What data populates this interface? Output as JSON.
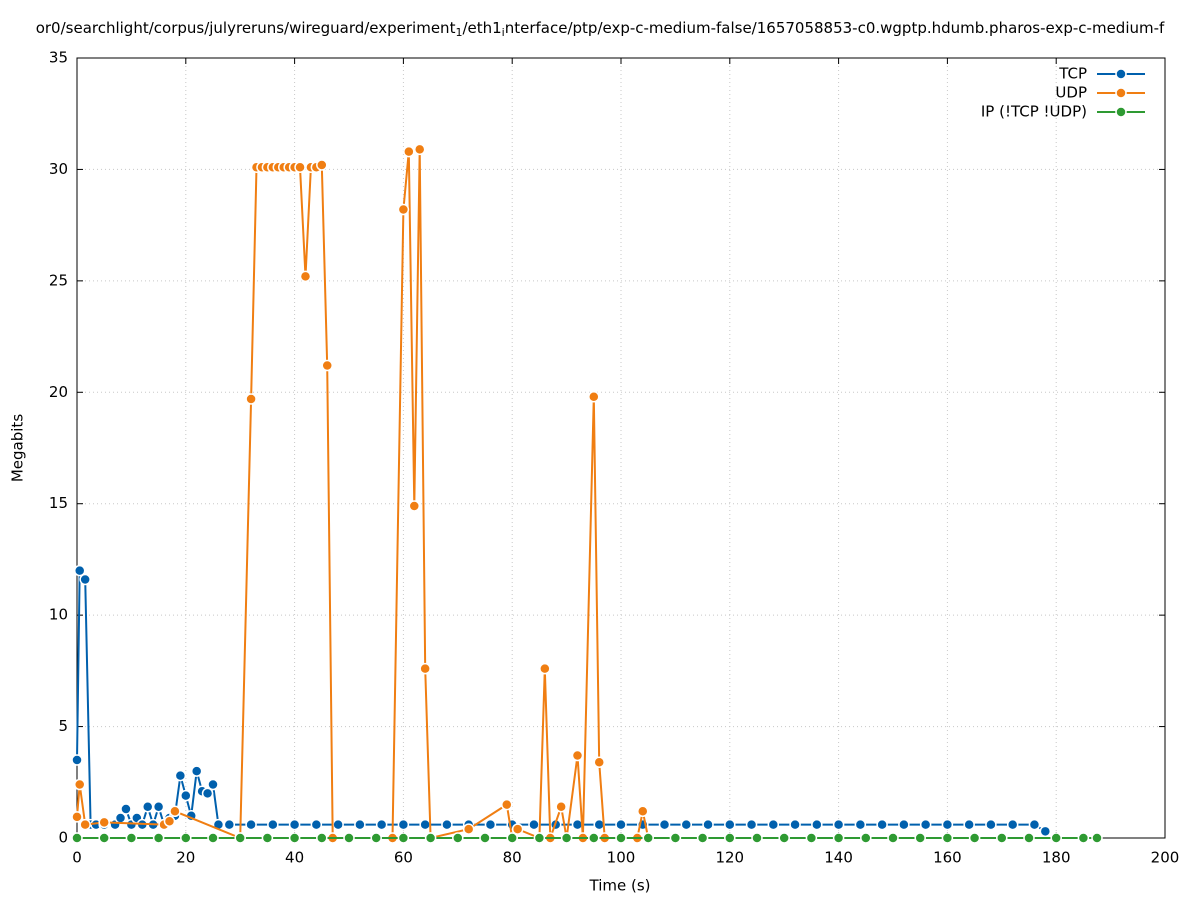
{
  "chart_data": {
    "type": "line",
    "title_segments": [
      "or0/searchlight/corpus/julyreruns/wireguard/experiment",
      "1",
      "/eth1",
      "i",
      "nterface/ptp/exp-c-medium-false/1657058853-c0.wgptp.hdumb.pharos-exp-c-medium-f"
    ],
    "xlabel": "Time (s)",
    "ylabel": "Megabits",
    "xlim": [
      0,
      200
    ],
    "xticks": [
      0,
      20,
      40,
      60,
      80,
      100,
      120,
      140,
      160,
      180,
      200
    ],
    "ylim": [
      0,
      35
    ],
    "yticks": [
      0,
      5,
      10,
      15,
      20,
      25,
      30,
      35
    ],
    "grid": true,
    "legend": "top-right",
    "series": [
      {
        "name": "TCP",
        "color": "#0060ad",
        "x": [
          0,
          0.5,
          1.5,
          2.5,
          3.5,
          5,
          7,
          8,
          9,
          10,
          11,
          12,
          13,
          14,
          15,
          16,
          17,
          18,
          19,
          20,
          21,
          22,
          23,
          24,
          25,
          26,
          28,
          32,
          36,
          40,
          44,
          48,
          52,
          56,
          60,
          64,
          68,
          72,
          76,
          80,
          84,
          88,
          92,
          96,
          100,
          104,
          108,
          112,
          116,
          120,
          124,
          128,
          132,
          136,
          140,
          144,
          148,
          152,
          156,
          160,
          164,
          168,
          172,
          176,
          178
        ],
        "values": [
          3.5,
          12,
          11.6,
          0.6,
          0.6,
          0.6,
          0.6,
          0.9,
          1.3,
          0.6,
          0.9,
          0.6,
          1.4,
          0.6,
          1.4,
          0.6,
          0.9,
          1.0,
          2.8,
          1.9,
          1.0,
          3.0,
          2.1,
          2.0,
          2.4,
          0.6,
          0.6,
          0.6,
          0.6,
          0.6,
          0.6,
          0.6,
          0.6,
          0.6,
          0.6,
          0.6,
          0.6,
          0.6,
          0.6,
          0.6,
          0.6,
          0.6,
          0.6,
          0.6,
          0.6,
          0.6,
          0.6,
          0.6,
          0.6,
          0.6,
          0.6,
          0.6,
          0.6,
          0.6,
          0.6,
          0.6,
          0.6,
          0.6,
          0.6,
          0.6,
          0.6,
          0.6,
          0.6,
          0.6,
          0.3
        ]
      },
      {
        "name": "UDP",
        "color": "#f07e12",
        "x": [
          0,
          0.5,
          1.5,
          5,
          16,
          17,
          18,
          30,
          32,
          33,
          34,
          35,
          36,
          37,
          38,
          39,
          40,
          41,
          42,
          43,
          44,
          45,
          46,
          47,
          58,
          60,
          61,
          62,
          63,
          64,
          65,
          72,
          79,
          80,
          81,
          85,
          86,
          87,
          89,
          90,
          92,
          93,
          95,
          96,
          97,
          103,
          104,
          105
        ],
        "values": [
          0.95,
          2.4,
          0.6,
          0.7,
          0.6,
          0.75,
          1.2,
          0,
          19.7,
          30.1,
          30.1,
          30.1,
          30.1,
          30.1,
          30.1,
          30.1,
          30.1,
          30.1,
          25.2,
          30.1,
          30.1,
          30.2,
          21.2,
          0,
          0,
          28.2,
          30.8,
          14.9,
          30.9,
          7.6,
          0,
          0.4,
          1.5,
          0,
          0.4,
          0,
          7.6,
          0,
          1.4,
          0,
          3.7,
          0,
          19.8,
          3.4,
          0,
          0,
          1.2,
          0
        ]
      },
      {
        "name": "IP (!TCP  !UDP)",
        "color": "#2e9a32",
        "x": [
          0,
          5,
          10,
          15,
          20,
          25,
          30,
          35,
          40,
          45,
          50,
          55,
          60,
          65,
          70,
          75,
          80,
          85,
          90,
          95,
          100,
          105,
          110,
          115,
          120,
          125,
          130,
          135,
          140,
          145,
          150,
          155,
          160,
          165,
          170,
          175,
          180,
          185,
          187.5
        ],
        "values": [
          0,
          0,
          0,
          0,
          0,
          0,
          0,
          0,
          0,
          0,
          0,
          0,
          0,
          0,
          0,
          0,
          0,
          0,
          0,
          0,
          0,
          0,
          0,
          0,
          0,
          0,
          0,
          0,
          0,
          0,
          0,
          0,
          0,
          0,
          0,
          0,
          0,
          0,
          0
        ]
      }
    ]
  }
}
